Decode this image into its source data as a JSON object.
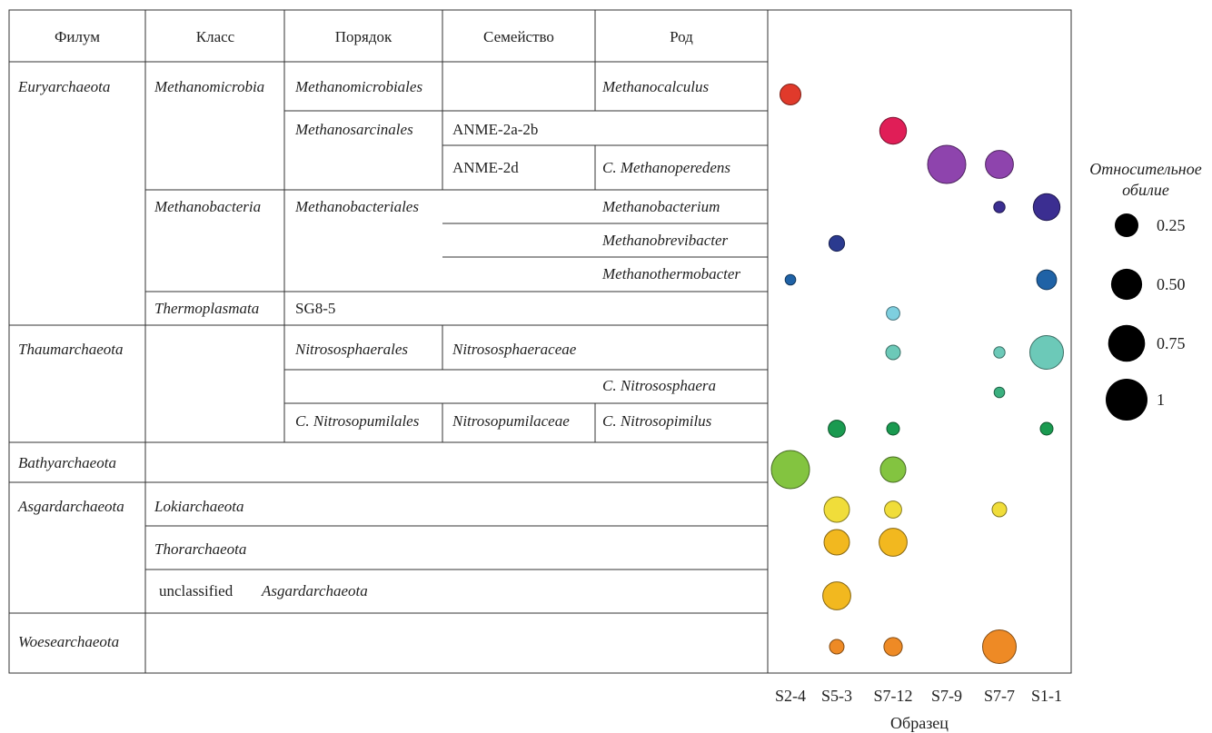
{
  "headers": [
    "Филум",
    "Класс",
    "Порядок",
    "Семейство",
    "Род"
  ],
  "rows": [
    {
      "phylum": "Euryarchaeota",
      "class": "Methanomicrobia",
      "order": "Methanomicrobiales",
      "family": "",
      "genus": "Methanocalculus"
    },
    {
      "phylum": "",
      "class": "",
      "order": "Methanosarcinales",
      "family": "ANME-2a-2b",
      "genus": ""
    },
    {
      "phylum": "",
      "class": "",
      "order": "",
      "family": "ANME-2d",
      "genus": "C. Methanoperedens"
    },
    {
      "phylum": "",
      "class": "Methanobacteria",
      "order": "Methanobacteriales",
      "family": "",
      "genus": "Methanobacterium"
    },
    {
      "phylum": "",
      "class": "",
      "order": "",
      "family": "",
      "genus": "Methanobrevibacter"
    },
    {
      "phylum": "",
      "class": "",
      "order": "",
      "family": "",
      "genus": "Methanothermobacter"
    },
    {
      "phylum": "",
      "class": "Thermoplasmata",
      "order": "SG8-5",
      "family": "",
      "genus": ""
    },
    {
      "phylum": "Thaumarchaeota",
      "class": "",
      "order": "Nitrososphaerales",
      "family": "Nitrososphaeraceae",
      "genus": ""
    },
    {
      "phylum": "",
      "class": "",
      "order": "",
      "family": "",
      "genus": "C. Nitrososphaera"
    },
    {
      "phylum": "",
      "class": "",
      "order": "C. Nitrosopumilales",
      "family": "Nitrosopumilaceae",
      "genus": "C. Nitrosopimilus"
    },
    {
      "phylum": "Bathyarchaeota",
      "class": "",
      "order": "",
      "family": "",
      "genus": ""
    },
    {
      "phylum": "Asgardarchaeota",
      "class": "Lokiarchaeota",
      "order": "",
      "family": "",
      "genus": ""
    },
    {
      "phylum": "",
      "class": "Thorarchaeota",
      "order": "",
      "family": "",
      "genus": ""
    },
    {
      "phylum": "",
      "class": "unclassified Asgardarchaeota",
      "order": "",
      "family": "",
      "genus": ""
    },
    {
      "phylum": "Woesearchaeota",
      "class": "",
      "order": "",
      "family": "",
      "genus": ""
    }
  ],
  "unclassified": {
    "prefix": "unclassified",
    "name": "Asgardarchaeota"
  },
  "chart_data": {
    "type": "scatter",
    "xlabel": "Образец",
    "samples": [
      "S2-4",
      "S5-3",
      "S7-12",
      "S7-9",
      "S7-7",
      "S1-1"
    ],
    "size_legend": {
      "title": "Относительное обилие",
      "values": [
        0.25,
        0.5,
        0.75,
        1
      ],
      "labels": [
        "0.25",
        "0.50",
        "0.75",
        "1"
      ]
    },
    "taxa_colors": [
      "#e03a2b",
      "#e01e57",
      "#8e44ad",
      "#3b2e91",
      "#2b3a8f",
      "#1f62a6",
      "#7ecfdf",
      "#6cc9b8",
      "#3bb07f",
      "#1a9a50",
      "#83c440",
      "#f0dd3a",
      "#f2b81f",
      "#f2b81f",
      "#ee8a25"
    ],
    "values": [
      [
        0.25,
        0,
        0,
        0,
        0,
        0
      ],
      [
        0,
        0,
        0.45,
        0,
        0,
        0
      ],
      [
        0,
        0,
        0,
        1.0,
        0.5,
        0
      ],
      [
        0,
        0,
        0,
        0,
        0.05,
        0.45
      ],
      [
        0,
        0.12,
        0,
        0,
        0,
        0
      ],
      [
        0.04,
        0,
        0,
        0,
        0,
        0.22
      ],
      [
        0,
        0,
        0.08,
        0,
        0,
        0
      ],
      [
        0,
        0,
        0.1,
        0,
        0.05,
        0.75
      ],
      [
        0,
        0,
        0,
        0,
        0.04,
        0
      ],
      [
        0,
        0.15,
        0.07,
        0,
        0,
        0.07
      ],
      [
        1.0,
        0,
        0.4,
        0,
        0,
        0
      ],
      [
        0,
        0.4,
        0.15,
        0,
        0.1,
        0
      ],
      [
        0,
        0.4,
        0.5,
        0,
        0,
        0
      ],
      [
        0,
        0.5,
        0,
        0,
        0,
        0
      ],
      [
        0,
        0.1,
        0.18,
        0,
        0.75,
        0
      ]
    ]
  }
}
